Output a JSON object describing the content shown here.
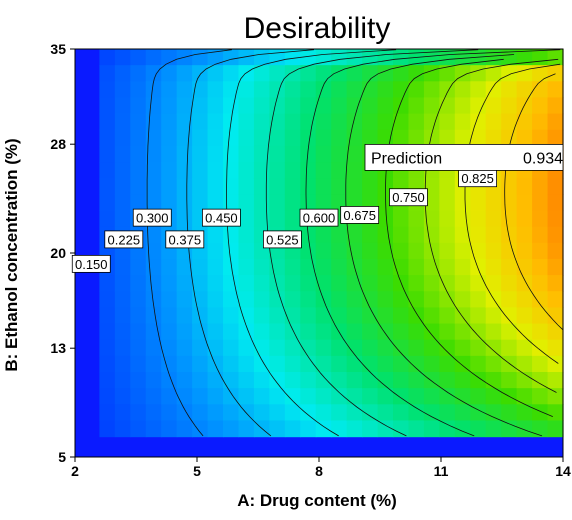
{
  "chart_data": {
    "type": "heatmap",
    "title": "Desirability",
    "xlabel": "A: Drug content (%)",
    "ylabel": "B: Ethanol concentration (%)",
    "xlim": [
      2,
      14
    ],
    "ylim": [
      5,
      35
    ],
    "xticks": [
      "2",
      "5",
      "8",
      "11",
      "14"
    ],
    "yticks": [
      "5",
      "13",
      "20",
      "28",
      "35"
    ],
    "feasible_region": {
      "x": [
        2.6,
        14
      ],
      "y": [
        6.5,
        35
      ]
    },
    "peak": {
      "x": 14,
      "y": 24
    },
    "contour_levels": [
      0.15,
      0.225,
      0.3,
      0.375,
      0.45,
      0.525,
      0.6,
      0.675,
      0.75,
      0.825
    ],
    "contour_labels": [
      {
        "text": "0.150",
        "x": 2.4,
        "y": 19.2
      },
      {
        "text": "0.225",
        "x": 3.2,
        "y": 21.0
      },
      {
        "text": "0.300",
        "x": 3.9,
        "y": 22.6
      },
      {
        "text": "0.375",
        "x": 4.7,
        "y": 21.0
      },
      {
        "text": "0.450",
        "x": 5.6,
        "y": 22.6
      },
      {
        "text": "0.525",
        "x": 7.1,
        "y": 21.0
      },
      {
        "text": "0.600",
        "x": 8.0,
        "y": 22.6
      },
      {
        "text": "0.675",
        "x": 9.0,
        "y": 22.8
      },
      {
        "text": "0.750",
        "x": 10.2,
        "y": 24.1
      },
      {
        "text": "0.825",
        "x": 11.9,
        "y": 25.5
      }
    ],
    "prediction": {
      "label": "Prediction",
      "value": "0.934",
      "x": 14,
      "y": 26
    }
  }
}
